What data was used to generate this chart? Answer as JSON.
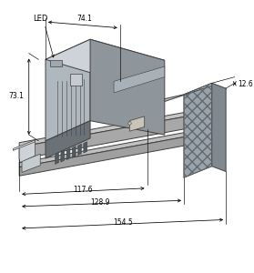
{
  "bg_color": "#ffffff",
  "line_color": "#404040",
  "dim_color": "#000000",
  "label_LED": "LED",
  "label_741": "74.1",
  "label_731": "73.1",
  "label_1176": "117.6",
  "label_1289": "128.9",
  "label_1545": "154.5",
  "label_126": "12.6",
  "col_body_front": "#b0b8bf",
  "col_body_top": "#cdd3d8",
  "col_body_right": "#8e969c",
  "col_conn_dark": "#6a7278",
  "col_pin": "#505a60",
  "col_rail_top": "#c5c5c5",
  "col_rail_front": "#a8a8a8",
  "col_rs_front": "#9aa2aa",
  "col_rs_top": "#b8c0c8",
  "col_rs_right": "#808890",
  "col_clip": "#cdd3d8",
  "col_clip_top": "#dde3e8",
  "figsize": [
    2.79,
    3.0
  ],
  "dpi": 100
}
